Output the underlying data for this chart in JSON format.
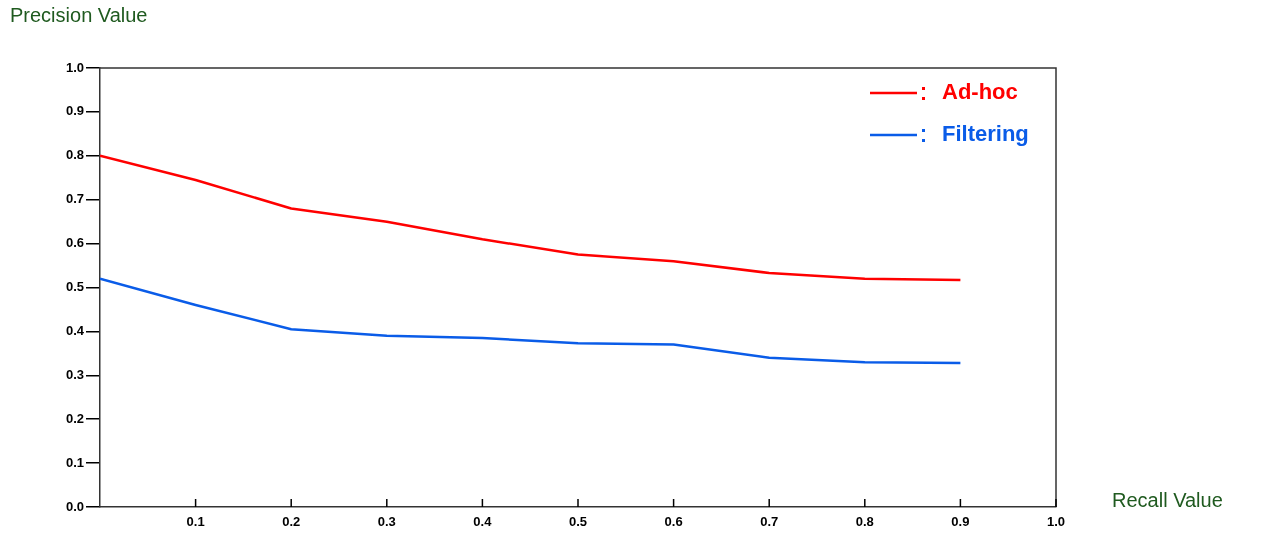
{
  "chart_data": {
    "type": "line",
    "xlabel": "Recall Value",
    "ylabel": "Precision Value",
    "x": [
      0,
      0.1,
      0.2,
      0.3,
      0.4,
      0.5,
      0.6,
      0.7,
      0.8,
      0.9
    ],
    "series": [
      {
        "name": "Ad-hoc",
        "color": "#ff0000",
        "values": [
          0.8,
          0.745,
          0.68,
          0.65,
          0.61,
          0.575,
          0.56,
          0.533,
          0.52,
          0.517
        ]
      },
      {
        "name": "Filtering",
        "color": "#0a5ce8",
        "values": [
          0.52,
          0.46,
          0.405,
          0.39,
          0.385,
          0.373,
          0.37,
          0.34,
          0.33,
          0.328
        ]
      }
    ],
    "xlim": [
      0,
      1
    ],
    "ylim": [
      0,
      1
    ],
    "xticks": [
      0.1,
      0.2,
      0.3,
      0.4,
      0.5,
      0.6,
      0.7,
      0.8,
      0.9,
      {
        "value": 1,
        "label": "1.0"
      }
    ],
    "yticks": [
      {
        "value": 0,
        "label": "0.0"
      },
      0.1,
      0.2,
      0.3,
      0.4,
      0.5,
      0.6,
      0.7,
      0.8,
      0.9,
      {
        "value": 1,
        "label": "1.0"
      }
    ],
    "grid": false,
    "legend": "top right",
    "marker": "none",
    "line_style": "solid"
  }
}
